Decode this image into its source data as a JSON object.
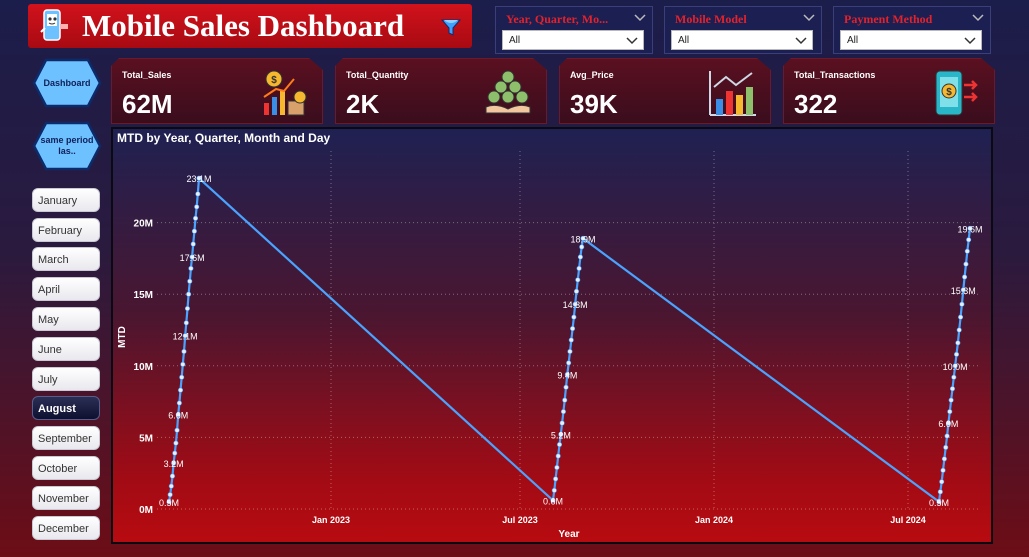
{
  "header": {
    "title": "Mobile Sales Dashboard"
  },
  "slicers": [
    {
      "title": "Year, Quarter, Mo...",
      "value": "All"
    },
    {
      "title": "Mobile Model",
      "value": "All"
    },
    {
      "title": "Payment Method",
      "value": "All"
    }
  ],
  "nav": {
    "dashboard_label": "Dashboard",
    "same_period_label": "same period las.."
  },
  "months": [
    "January",
    "February",
    "March",
    "April",
    "May",
    "June",
    "July",
    "August",
    "September",
    "October",
    "November",
    "December"
  ],
  "selected_month": "August",
  "kpis": [
    {
      "label": "Total_Sales",
      "value": "62M",
      "icon": "coins-chart-icon"
    },
    {
      "label": "Total_Quantity",
      "value": "2K",
      "icon": "coins-hand-icon"
    },
    {
      "label": "Avg_Price",
      "value": "39K",
      "icon": "bar-chart-icon"
    },
    {
      "label": "Total_Transactions",
      "value": "322",
      "icon": "mobile-payment-icon"
    }
  ],
  "colors": {
    "accent_red": "#d1121c",
    "line": "#4aa3ff",
    "nav_fill": "#6ec1ff"
  },
  "chart_data": {
    "type": "line",
    "title": "MTD by Year, Quarter, Month and Day",
    "xlabel": "Year",
    "ylabel": "MTD",
    "x_ticks": [
      "Jan 2023",
      "Jul 2023",
      "Jan 2024",
      "Jul 2024"
    ],
    "y_ticks": [
      "0M",
      "5M",
      "10M",
      "15M",
      "20M"
    ],
    "ylim": [
      0,
      25
    ],
    "grid": true,
    "series": [
      {
        "segment": "Aug 2022",
        "points": [
          0.5,
          1.0,
          1.6,
          2.3,
          3.2,
          3.9,
          4.6,
          5.5,
          6.6,
          7.4,
          8.3,
          9.2,
          10.1,
          11.0,
          12.1,
          13.0,
          14.0,
          15.0,
          15.9,
          16.8,
          17.6,
          18.5,
          19.4,
          20.3,
          21.1,
          22.0,
          23.1
        ]
      },
      {
        "segment": "Aug 2023",
        "points": [
          0.6,
          1.3,
          2.1,
          2.9,
          3.7,
          4.5,
          5.2,
          6.0,
          6.8,
          7.6,
          8.5,
          9.4,
          10.2,
          11.0,
          11.8,
          12.6,
          13.4,
          14.3,
          15.2,
          16.0,
          16.8,
          17.6,
          18.3,
          18.9
        ]
      },
      {
        "segment": "Aug 2024",
        "points": [
          0.5,
          1.2,
          1.9,
          2.7,
          3.5,
          4.3,
          5.1,
          6.0,
          6.8,
          7.6,
          8.4,
          9.2,
          10.0,
          10.8,
          11.6,
          12.5,
          13.4,
          14.3,
          15.3,
          16.2,
          17.1,
          18.0,
          18.8,
          19.6
        ]
      }
    ],
    "data_labels": [
      {
        "segment": 0,
        "index": 0,
        "text": "0.5M"
      },
      {
        "segment": 0,
        "index": 4,
        "text": "3.2M"
      },
      {
        "segment": 0,
        "index": 8,
        "text": "6.6M"
      },
      {
        "segment": 0,
        "index": 14,
        "text": "12.1M"
      },
      {
        "segment": 0,
        "index": 20,
        "text": "17.6M"
      },
      {
        "segment": 0,
        "index": 26,
        "text": "23.1M"
      },
      {
        "segment": 1,
        "index": 0,
        "text": "0.6M"
      },
      {
        "segment": 1,
        "index": 6,
        "text": "5.2M"
      },
      {
        "segment": 1,
        "index": 11,
        "text": "9.4M"
      },
      {
        "segment": 1,
        "index": 17,
        "text": "14.3M"
      },
      {
        "segment": 1,
        "index": 23,
        "text": "18.9M"
      },
      {
        "segment": 2,
        "index": 0,
        "text": "0.5M"
      },
      {
        "segment": 2,
        "index": 7,
        "text": "6.0M"
      },
      {
        "segment": 2,
        "index": 12,
        "text": "10.0M"
      },
      {
        "segment": 2,
        "index": 18,
        "text": "15.3M"
      },
      {
        "segment": 2,
        "index": 23,
        "text": "19.6M"
      }
    ]
  }
}
